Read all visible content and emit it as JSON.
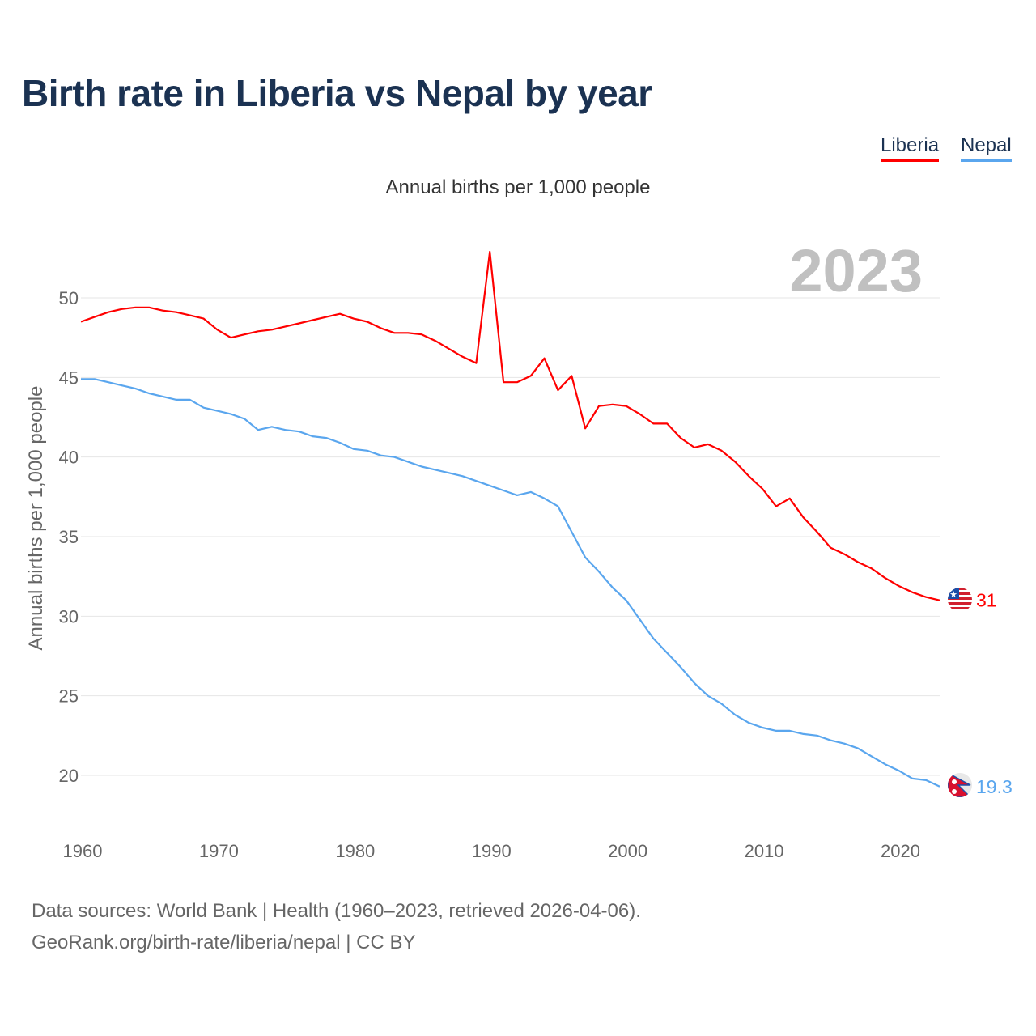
{
  "title": "Birth rate in Liberia vs Nepal by year",
  "legend": [
    "Liberia",
    "Nepal"
  ],
  "footer": {
    "line1": "Data sources: World Bank | Health (1960–2023, retrieved 2026-04-06).",
    "line2": "GeoRank.org/birth-rate/liberia/nepal | CC BY"
  },
  "chart_data": {
    "type": "line",
    "title": "Birth rate in Liberia vs Nepal by year",
    "subtitle": "Annual births per 1,000 people",
    "ylabel": "Annual births per 1,000 people",
    "xlabel": "",
    "year_watermark": "2023",
    "xlim": [
      1960,
      2023
    ],
    "ylim": [
      20,
      50
    ],
    "xticks": [
      "1960",
      "1970",
      "1980",
      "1990",
      "2000",
      "2010",
      "2020"
    ],
    "yticks": [
      "20",
      "25",
      "30",
      "35",
      "40",
      "45",
      "50"
    ],
    "grid": true,
    "legend_position": "top-right",
    "x_start": 1960,
    "series": [
      {
        "name": "Liberia",
        "color": "#ff0000",
        "end_label": "31",
        "flag": "liberia-flag",
        "values": [
          48.5,
          48.8,
          49.1,
          49.3,
          49.4,
          49.4,
          49.2,
          49.1,
          48.9,
          48.7,
          48.0,
          47.5,
          47.7,
          47.9,
          48.0,
          48.2,
          48.4,
          48.6,
          48.8,
          49.0,
          48.7,
          48.5,
          48.1,
          47.8,
          47.8,
          47.7,
          47.3,
          46.8,
          46.3,
          45.9,
          52.9,
          44.7,
          44.7,
          45.1,
          46.2,
          44.2,
          45.1,
          41.8,
          43.2,
          43.3,
          43.2,
          42.7,
          42.1,
          42.1,
          41.2,
          40.6,
          40.8,
          40.4,
          39.7,
          38.8,
          38.0,
          36.9,
          37.4,
          36.2,
          35.3,
          34.3,
          33.9,
          33.4,
          33.0,
          32.4,
          31.9,
          31.5,
          31.2,
          31.0
        ]
      },
      {
        "name": "Nepal",
        "color": "#5aa6ee",
        "end_label": "19.3",
        "flag": "nepal-flag",
        "values": [
          44.9,
          44.9,
          44.7,
          44.5,
          44.3,
          44.0,
          43.8,
          43.6,
          43.6,
          43.1,
          42.9,
          42.7,
          42.4,
          41.7,
          41.9,
          41.7,
          41.6,
          41.3,
          41.2,
          40.9,
          40.5,
          40.4,
          40.1,
          40.0,
          39.7,
          39.4,
          39.2,
          39.0,
          38.8,
          38.5,
          38.2,
          37.9,
          37.6,
          37.8,
          37.4,
          36.9,
          35.3,
          33.7,
          32.8,
          31.8,
          31.0,
          29.8,
          28.6,
          27.7,
          26.8,
          25.8,
          25.0,
          24.5,
          23.8,
          23.3,
          23.0,
          22.8,
          22.8,
          22.6,
          22.5,
          22.2,
          22.0,
          21.7,
          21.2,
          20.7,
          20.3,
          19.8,
          19.7,
          19.3
        ]
      }
    ]
  }
}
